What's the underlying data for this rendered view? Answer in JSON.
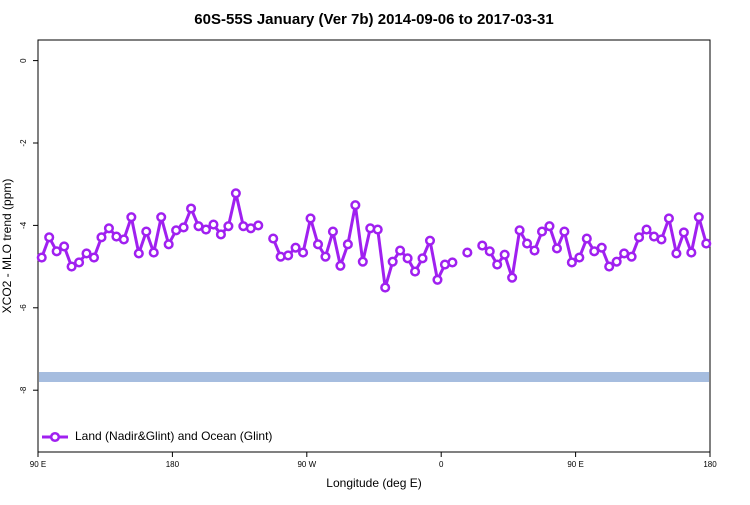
{
  "chart_data": {
    "type": "line",
    "title": "60S-55S January (Ver 7b)   2014-09-06 to 2017-03-31",
    "xlabel": "Longitude (deg E)",
    "ylabel": "XCO2 - MLO trend (ppm)",
    "xlim": [
      90,
      540
    ],
    "xticks": [
      {
        "value": 90,
        "label": "90 E"
      },
      {
        "value": 180,
        "label": "180"
      },
      {
        "value": 270,
        "label": "90 W"
      },
      {
        "value": 360,
        "label": "0"
      },
      {
        "value": 450,
        "label": "90 E"
      },
      {
        "value": 540,
        "label": "180"
      }
    ],
    "ylim": [
      -9.5,
      0.5
    ],
    "yticks": [
      0,
      -2,
      -4,
      -6,
      -8
    ],
    "legend": "bottomleft",
    "band": {
      "value": -7.68,
      "color": "#a6bddf"
    },
    "x": [
      92.5,
      97.5,
      102.5,
      107.5,
      112.5,
      117.5,
      122.5,
      127.5,
      132.5,
      137.5,
      142.5,
      147.5,
      152.5,
      157.5,
      162.5,
      167.5,
      172.5,
      177.5,
      182.5,
      187.5,
      192.5,
      197.5,
      202.5,
      207.5,
      212.5,
      217.5,
      222.5,
      227.5,
      232.5,
      237.5,
      242.5,
      247.5,
      252.5,
      257.5,
      262.5,
      267.5,
      272.5,
      277.5,
      282.5,
      287.5,
      292.5,
      297.5,
      302.5,
      307.5,
      312.5,
      317.5,
      322.5,
      327.5,
      332.5,
      337.5,
      342.5,
      347.5,
      352.5,
      357.5,
      362.5,
      367.5,
      372.5,
      377.5,
      382.5,
      387.5,
      392.5,
      397.5,
      402.5,
      407.5,
      412.5,
      417.5,
      422.5,
      427.5,
      432.5,
      437.5,
      442.5,
      447.5,
      452.5,
      457.5,
      462.5,
      467.5,
      472.5,
      477.5,
      482.5,
      487.5,
      492.5,
      497.5,
      502.5,
      507.5,
      512.5,
      517.5,
      522.5,
      527.5,
      532.5,
      537.5
    ],
    "series": [
      {
        "name": "Land (Nadir&Glint) and Ocean (Glint)",
        "color": "#a020f0",
        "values": [
          -4.78,
          -4.29,
          -4.63,
          -4.51,
          -5.0,
          -4.9,
          -4.68,
          -4.78,
          -4.29,
          -4.07,
          -4.27,
          -4.34,
          -3.8,
          -4.68,
          -4.15,
          -4.66,
          -3.8,
          -4.46,
          -4.12,
          -4.05,
          -3.59,
          -4.02,
          -4.1,
          -3.98,
          -4.22,
          -4.02,
          -3.22,
          -4.02,
          -4.07,
          -4.0,
          null,
          -4.32,
          -4.76,
          -4.73,
          -4.54,
          -4.66,
          -3.83,
          -4.46,
          -4.76,
          -4.15,
          -4.98,
          -4.46,
          -3.51,
          -4.88,
          -4.07,
          -4.1,
          -5.51,
          -4.88,
          -4.61,
          -4.8,
          -5.12,
          -4.8,
          -4.37,
          -5.32,
          -4.95,
          -4.9,
          null,
          -4.66,
          null,
          -4.49,
          -4.63,
          -4.95,
          -4.71,
          -5.27,
          -4.12,
          -4.44,
          -4.61,
          -4.15,
          -4.02,
          -4.56,
          -4.15,
          -4.9,
          -4.78,
          -4.32,
          -4.63,
          -4.54,
          -5.0,
          -4.88,
          -4.68,
          -4.76,
          -4.29,
          -4.1,
          -4.27,
          -4.34,
          -3.83,
          -4.68,
          -4.17,
          -4.66,
          -3.8,
          -4.44
        ]
      }
    ]
  }
}
